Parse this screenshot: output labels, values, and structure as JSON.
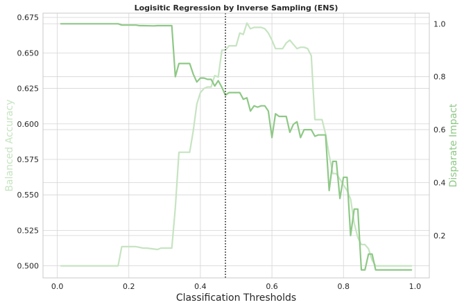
{
  "chart_data": {
    "type": "line",
    "title": "Logisitic Regression by Inverse Sampling (ENS)",
    "xlabel": "Classification Thresholds",
    "ylabel_left": "Balanced Accuracy",
    "ylabel_right": "Disparate Impact",
    "xlim": [
      -0.04,
      1.04
    ],
    "ylim_left": [
      0.4915,
      0.678
    ],
    "ylim_right": [
      0.04,
      1.04
    ],
    "x_ticks": [
      "0.0",
      "0.2",
      "0.4",
      "0.6",
      "0.8",
      "1.0"
    ],
    "y_left_ticks": [
      "0.500",
      "0.525",
      "0.550",
      "0.575",
      "0.600",
      "0.625",
      "0.650",
      "0.675"
    ],
    "y_right_ticks": [
      "0.2",
      "0.4",
      "0.6",
      "0.8",
      "1.0"
    ],
    "grid": true,
    "threshold_line": 0.47,
    "colors": {
      "balanced_accuracy": "#c6e4c1",
      "disparate_impact": "#8ec886",
      "threshold": "#262626",
      "left_label": "#c6e4c1",
      "right_label": "#8ec886"
    },
    "series": [
      {
        "axis": "left",
        "x": [
          0.01,
          0.17,
          0.18,
          0.22,
          0.24,
          0.25,
          0.28,
          0.29,
          0.32,
          0.33,
          0.34,
          0.37,
          0.38,
          0.39,
          0.4,
          0.41,
          0.42,
          0.43,
          0.44,
          0.45,
          0.46,
          0.47,
          0.48,
          0.5,
          0.51,
          0.52,
          0.53,
          0.54,
          0.55,
          0.56,
          0.57,
          0.58,
          0.59,
          0.6,
          0.61,
          0.62,
          0.63,
          0.64,
          0.65,
          0.66,
          0.67,
          0.68,
          0.69,
          0.7,
          0.71,
          0.72,
          0.73,
          0.74,
          0.75,
          0.76,
          0.77,
          0.78,
          0.79,
          0.8,
          0.81,
          0.82,
          0.83,
          0.84,
          0.85,
          0.86,
          0.87,
          0.88,
          0.89,
          0.99
        ],
        "values": [
          0.5,
          0.5,
          0.5135,
          0.5135,
          0.5125,
          0.5125,
          0.5115,
          0.5125,
          0.5125,
          0.541,
          0.58,
          0.58,
          0.595,
          0.614,
          0.622,
          0.625,
          0.626,
          0.626,
          0.634,
          0.633,
          0.652,
          0.652,
          0.655,
          0.655,
          0.664,
          0.663,
          0.671,
          0.667,
          0.668,
          0.668,
          0.668,
          0.667,
          0.664,
          0.659,
          0.653,
          0.653,
          0.653,
          0.657,
          0.659,
          0.656,
          0.653,
          0.654,
          0.654,
          0.653,
          0.648,
          0.603,
          0.603,
          0.603,
          0.593,
          0.578,
          0.565,
          0.565,
          0.561,
          0.557,
          0.553,
          0.547,
          0.53,
          0.52,
          0.515,
          0.515,
          0.512,
          0.504,
          0.5,
          0.5
        ]
      },
      {
        "axis": "right",
        "x": [
          0.01,
          0.17,
          0.18,
          0.22,
          0.23,
          0.24,
          0.27,
          0.28,
          0.32,
          0.33,
          0.34,
          0.37,
          0.38,
          0.39,
          0.4,
          0.41,
          0.42,
          0.43,
          0.44,
          0.45,
          0.46,
          0.47,
          0.48,
          0.5,
          0.51,
          0.52,
          0.53,
          0.54,
          0.55,
          0.56,
          0.57,
          0.58,
          0.59,
          0.6,
          0.61,
          0.62,
          0.63,
          0.64,
          0.65,
          0.66,
          0.67,
          0.68,
          0.69,
          0.7,
          0.71,
          0.72,
          0.73,
          0.74,
          0.75,
          0.76,
          0.77,
          0.78,
          0.79,
          0.8,
          0.81,
          0.82,
          0.83,
          0.84,
          0.85,
          0.86,
          0.87,
          0.88,
          0.89,
          0.99
        ],
        "values": [
          1.0,
          1.0,
          0.995,
          0.995,
          0.993,
          0.993,
          0.992,
          0.993,
          0.993,
          0.8,
          0.85,
          0.85,
          0.81,
          0.78,
          0.795,
          0.795,
          0.79,
          0.79,
          0.765,
          0.785,
          0.76,
          0.73,
          0.74,
          0.74,
          0.74,
          0.715,
          0.72,
          0.67,
          0.69,
          0.685,
          0.69,
          0.69,
          0.67,
          0.57,
          0.66,
          0.65,
          0.65,
          0.65,
          0.59,
          0.62,
          0.63,
          0.57,
          0.6,
          0.6,
          0.6,
          0.575,
          0.58,
          0.58,
          0.58,
          0.37,
          0.48,
          0.48,
          0.34,
          0.42,
          0.42,
          0.2,
          0.3,
          0.3,
          0.07,
          0.07,
          0.13,
          0.13,
          0.07,
          0.07
        ]
      }
    ]
  }
}
